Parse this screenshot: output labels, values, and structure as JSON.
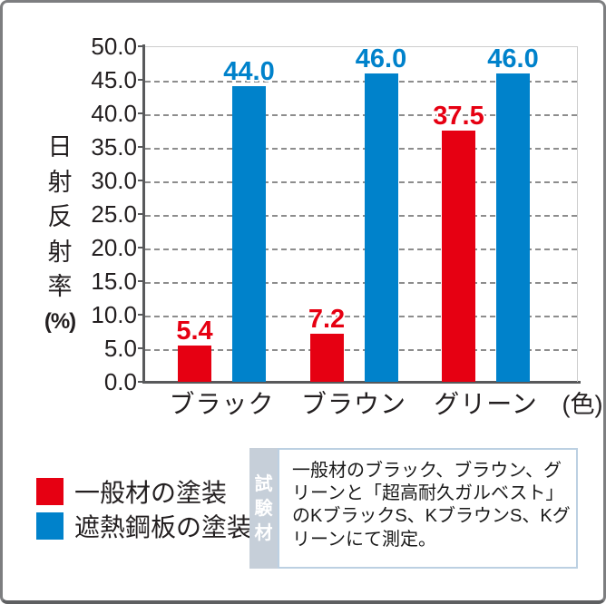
{
  "chart_data": {
    "type": "bar",
    "title": "",
    "categories": [
      "ブラック",
      "ブラウン",
      "グリーン"
    ],
    "series": [
      {
        "name": "一般材の塗装",
        "color": "#e60012",
        "values": [
          5.4,
          7.2,
          37.5
        ]
      },
      {
        "name": "遮熱鋼板の塗装",
        "color": "#0082cb",
        "values": [
          44.0,
          46.0,
          46.0
        ]
      }
    ],
    "ylabel": "日射反射率(%)",
    "ylabel_chars": [
      "日",
      "射",
      "反",
      "射",
      "率",
      "(%)"
    ],
    "xlabel_unit": "(色)",
    "ylim": [
      0,
      50
    ],
    "ytick_step": 5,
    "ytick_labels": [
      "50.0",
      "45.0",
      "40.0",
      "35.0",
      "30.0",
      "25.0",
      "20.0",
      "15.0",
      "10.0",
      "5.0",
      "0.0"
    ],
    "grid": "horizontal-dashed",
    "value_label_decimals": 1,
    "legend_position": "bottom-left"
  },
  "legend": {
    "items": [
      {
        "label": "一般材の塗装",
        "color": "#e60012"
      },
      {
        "label": "遮熱鋼板の塗装",
        "color": "#0082cb"
      }
    ]
  },
  "note": {
    "side_label": "試験材",
    "side_label_chars": [
      "試",
      "験",
      "材"
    ],
    "text": "一般材のブラック、ブラウン、グリーンと「超高耐久ガルベスト」のKブラックS、KブラウンS、Kグリーンにて測定。",
    "lines": [
      "一般材のブラック、ブラウン、グ",
      "リーンと「超高耐久ガルベスト」",
      "のKブラックS、KブラウンS、Kグ",
      "リーンにて測定。"
    ]
  }
}
